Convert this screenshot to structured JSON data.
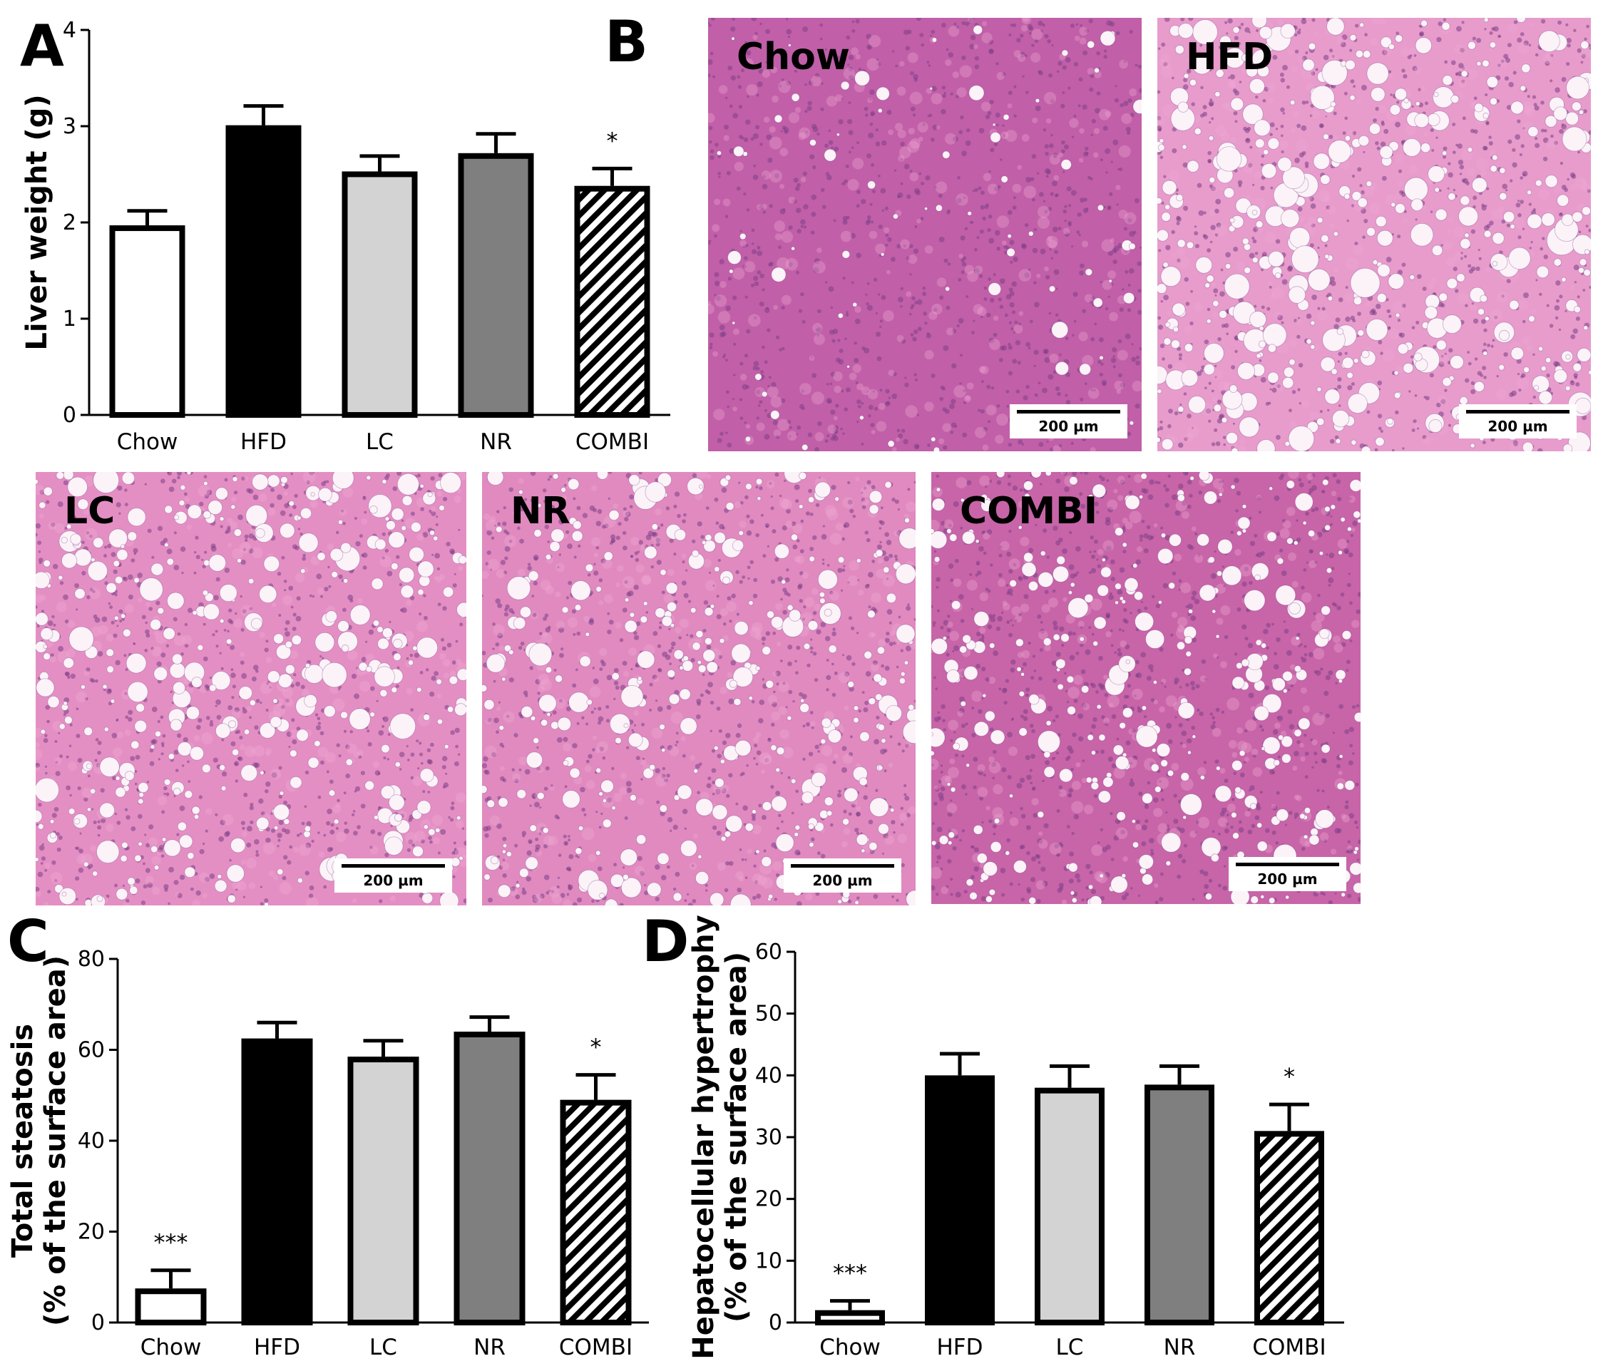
{
  "figure_letters": {
    "a": "A",
    "b": "B",
    "c": "C",
    "d": "D"
  },
  "chart_data": [
    {
      "panel": "A",
      "type": "bar",
      "categories": [
        "Chow",
        "HFD",
        "LC",
        "NR",
        "COMBI"
      ],
      "values": [
        1.97,
        3.01,
        2.53,
        2.72,
        2.38
      ],
      "errors": [
        0.15,
        0.2,
        0.16,
        0.2,
        0.18
      ],
      "significance": [
        "",
        "",
        "",
        "",
        "*"
      ],
      "ylabel_lines": [
        "Liver weight (g)"
      ],
      "ylim": [
        0,
        4
      ],
      "yticks": [
        "0",
        "1",
        "2",
        "3",
        "4"
      ],
      "fills": [
        "white",
        "black",
        "lightgray",
        "gray",
        "hatched"
      ],
      "colors": {
        "white": "#ffffff",
        "black": "#000000",
        "lightgray": "#d3d3d3",
        "gray": "#7f7f7f"
      },
      "legend": "none",
      "grid": false
    },
    {
      "panel": "C",
      "type": "bar",
      "categories": [
        "Chow",
        "HFD",
        "LC",
        "NR",
        "COMBI"
      ],
      "values": [
        7.5,
        62.5,
        58.5,
        64.0,
        49.0
      ],
      "errors": [
        4.0,
        3.5,
        3.5,
        3.2,
        5.5
      ],
      "significance": [
        "***",
        "",
        "",
        "",
        "*"
      ],
      "ylabel_lines": [
        "Total steatosis",
        "(% of the surface area)"
      ],
      "ylim": [
        0,
        80
      ],
      "yticks": [
        "0",
        "20",
        "40",
        "60",
        "80"
      ],
      "fills": [
        "white",
        "black",
        "lightgray",
        "gray",
        "hatched"
      ],
      "colors": {
        "white": "#ffffff",
        "black": "#000000",
        "lightgray": "#d3d3d3",
        "gray": "#7f7f7f"
      },
      "legend": "none",
      "grid": false
    },
    {
      "panel": "D",
      "type": "bar",
      "categories": [
        "Chow",
        "HFD",
        "LC",
        "NR",
        "COMBI"
      ],
      "values": [
        2.0,
        40.0,
        38.0,
        38.5,
        31.0
      ],
      "errors": [
        1.5,
        3.5,
        3.5,
        3.0,
        4.3
      ],
      "significance": [
        "***",
        "",
        "",
        "",
        "*"
      ],
      "ylabel_lines": [
        "Hepatocellular hypertrophy",
        "(% of the surface area)"
      ],
      "ylim": [
        0,
        60
      ],
      "yticks": [
        "0",
        "10",
        "20",
        "30",
        "40",
        "50",
        "60"
      ],
      "fills": [
        "white",
        "black",
        "lightgray",
        "gray",
        "hatched"
      ],
      "colors": {
        "white": "#ffffff",
        "black": "#000000",
        "lightgray": "#d3d3d3",
        "gray": "#7f7f7f"
      },
      "legend": "none",
      "grid": false
    }
  ],
  "micrographs": [
    {
      "label": "Chow",
      "scale_bar": "200 µm",
      "base_color": "#c15fa8",
      "vacuole_density": 0.08,
      "vacuole_size": 0.6
    },
    {
      "label": "HFD",
      "scale_bar": "200 µm",
      "base_color": "#e79ccc",
      "vacuole_density": 0.9,
      "vacuole_size": 1.0
    },
    {
      "label": "LC",
      "scale_bar": "200 µm",
      "base_color": "#e48fc4",
      "vacuole_density": 0.85,
      "vacuole_size": 0.9
    },
    {
      "label": "NR",
      "scale_bar": "200 µm",
      "base_color": "#e08ac0",
      "vacuole_density": 0.7,
      "vacuole_size": 0.85
    },
    {
      "label": "COMBI",
      "scale_bar": "200 µm",
      "base_color": "#c864a8",
      "vacuole_density": 0.7,
      "vacuole_size": 0.8
    }
  ],
  "colors": {
    "axis": "#000000",
    "tissue_dark": "#7d3f86",
    "tissue_pink": "#f0a8d3",
    "vacuole": "#fbf3f8"
  }
}
